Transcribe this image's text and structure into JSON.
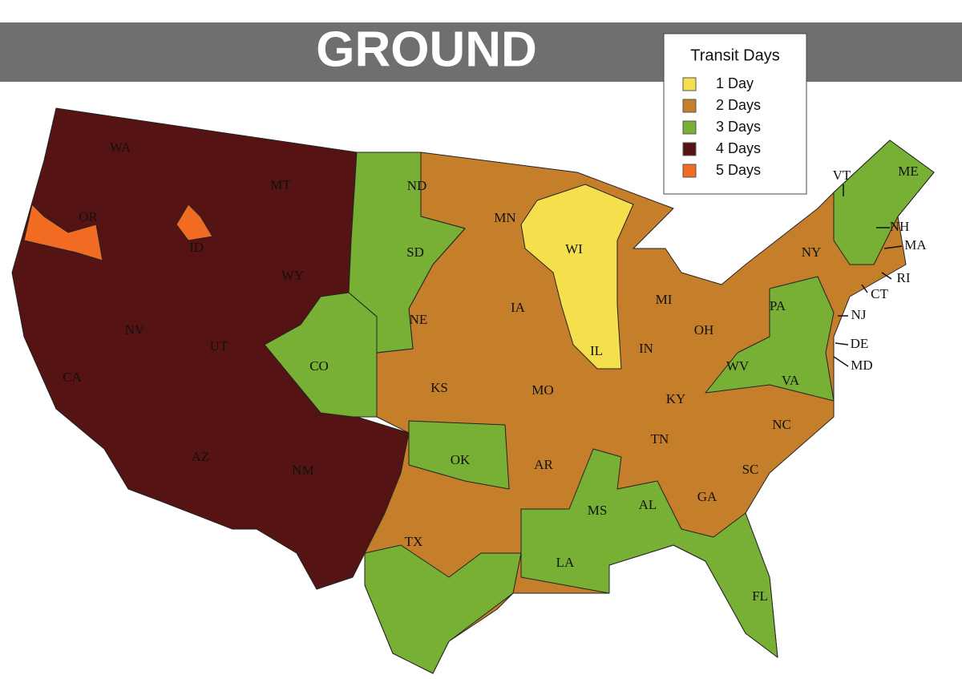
{
  "title": "GROUND",
  "legend": {
    "title": "Transit Days",
    "items": [
      {
        "label": "1 Day",
        "color": "#f5df4d"
      },
      {
        "label": "2 Days",
        "color": "#c57f2b"
      },
      {
        "label": "3 Days",
        "color": "#78b035"
      },
      {
        "label": "4 Days",
        "color": "#561313"
      },
      {
        "label": "5 Days",
        "color": "#f26b22"
      }
    ]
  },
  "states": [
    "WA",
    "MT",
    "OR",
    "ID",
    "WY",
    "NV",
    "UT",
    "CA",
    "CO",
    "AZ",
    "NM",
    "ND",
    "SD",
    "NE",
    "KS",
    "OK",
    "TX",
    "MN",
    "IA",
    "MO",
    "AR",
    "LA",
    "MS",
    "WI",
    "IL",
    "MI",
    "IN",
    "OH",
    "KY",
    "TN",
    "AL",
    "GA",
    "FL",
    "SC",
    "NC",
    "VA",
    "WV",
    "PA",
    "NY",
    "ME",
    "VT",
    "NH",
    "MA",
    "RI",
    "CT",
    "NJ",
    "DE",
    "MD"
  ]
}
